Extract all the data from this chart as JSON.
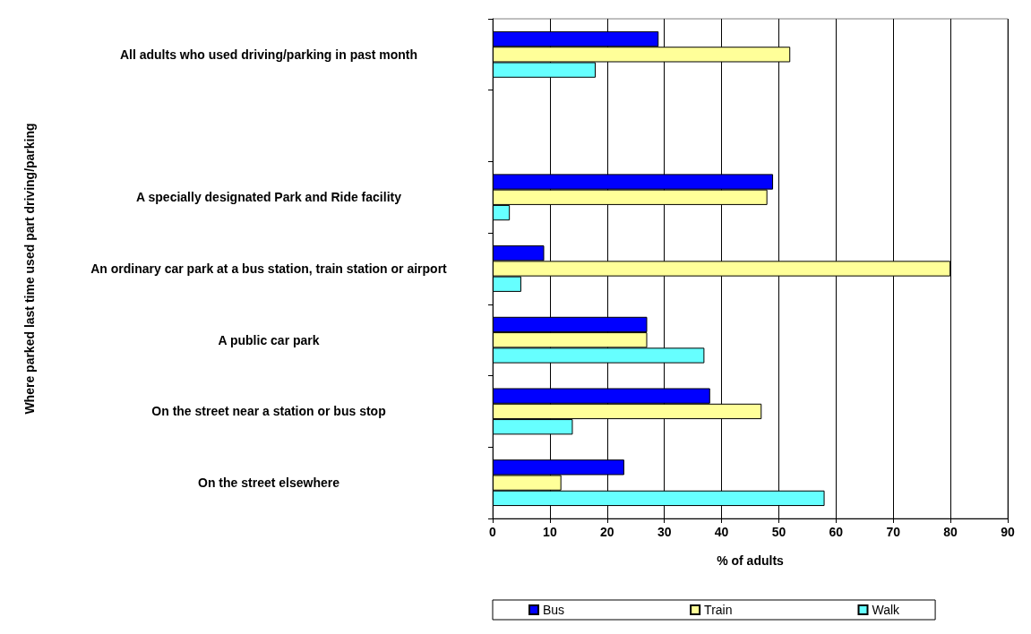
{
  "chart_data": {
    "type": "bar",
    "orientation": "horizontal",
    "xlabel": "% of adults",
    "ylabel": "Where parked last time used part driving/parking",
    "categories": [
      "All adults who used driving/parking in past month",
      null,
      "A specially designated Park and Ride facility",
      "An ordinary car park at a bus station, train station or airport",
      "A public car park",
      "On the street near a station or bus stop",
      "On the street elsewhere"
    ],
    "series": [
      {
        "name": "Bus",
        "color": "#0000ff",
        "values": [
          29,
          null,
          49,
          9,
          27,
          38,
          23
        ]
      },
      {
        "name": "Train",
        "color": "#ffff99",
        "values": [
          52,
          null,
          48,
          80,
          27,
          47,
          12
        ]
      },
      {
        "name": "Walk",
        "color": "#66ffff",
        "values": [
          18,
          null,
          3,
          5,
          37,
          14,
          58
        ]
      }
    ],
    "xlim": [
      0,
      90
    ],
    "xticks": [
      0,
      10,
      20,
      30,
      40,
      50,
      60,
      70,
      80,
      90
    ],
    "grid": "x",
    "legend": "bottom"
  }
}
